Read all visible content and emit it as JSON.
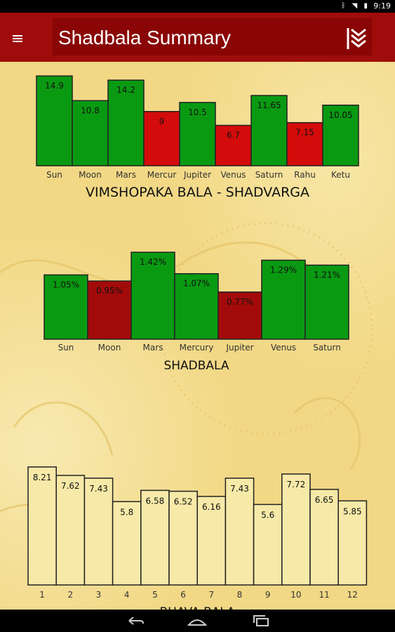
{
  "status": {
    "time": "9:19",
    "icons": [
      "bluetooth-icon",
      "wifi-icon",
      "battery-icon"
    ]
  },
  "app": {
    "title": "Shadbala Summary"
  },
  "colors": {
    "strong": "#0a9a12",
    "weak_red": "#d40b0b",
    "weak_dark": "#a30b0b",
    "bhava": "#f7e9a8",
    "appbar": "#9e0c0c"
  },
  "chart_data": [
    {
      "type": "bar",
      "title": "VIMSHOPAKA BALA - SHADVARGA",
      "categories": [
        "Sun",
        "Moon",
        "Mars",
        "Mercur",
        "Jupiter",
        "Venus",
        "Saturn",
        "Rahu",
        "Ketu"
      ],
      "values": [
        14.9,
        10.8,
        14.2,
        9,
        10.5,
        6.7,
        11.65,
        7.15,
        10.05
      ],
      "labels": [
        "14.9",
        "10.8",
        "14.2",
        "9",
        "10.5",
        "6.7",
        "11.65",
        "7.15",
        "10.05"
      ],
      "bar_colors": [
        "strong",
        "strong",
        "strong",
        "weak_red",
        "strong",
        "weak_red",
        "strong",
        "weak_red",
        "strong"
      ],
      "ylim": [
        0,
        15.5
      ],
      "grid": false
    },
    {
      "type": "bar",
      "title": "SHADBALA",
      "categories": [
        "Sun",
        "Moon",
        "Mars",
        "Mercury",
        "Jupiter",
        "Venus",
        "Saturn"
      ],
      "values": [
        1.05,
        0.95,
        1.42,
        1.07,
        0.77,
        1.29,
        1.21
      ],
      "labels": [
        "1.05%",
        "0.95%",
        "1.42%",
        "1.07%",
        "0.77%",
        "1.29%",
        "1.21%"
      ],
      "bar_colors": [
        "strong",
        "weak_dark",
        "strong",
        "strong",
        "weak_dark",
        "strong",
        "strong"
      ],
      "ylim": [
        0,
        1.48
      ],
      "grid": false
    },
    {
      "type": "bar",
      "title": "BHAVA BALA",
      "categories": [
        "1",
        "2",
        "3",
        "4",
        "5",
        "6",
        "7",
        "8",
        "9",
        "10",
        "11",
        "12"
      ],
      "values": [
        8.21,
        7.62,
        7.43,
        5.8,
        6.58,
        6.52,
        6.16,
        7.43,
        5.6,
        7.72,
        6.65,
        5.85
      ],
      "labels": [
        "8.21",
        "7.62",
        "7.43",
        "5.8",
        "6.58",
        "6.52",
        "6.16",
        "7.43",
        "5.6",
        "7.72",
        "6.65",
        "5.85"
      ],
      "bar_colors": [
        "bhava",
        "bhava",
        "bhava",
        "bhava",
        "bhava",
        "bhava",
        "bhava",
        "bhava",
        "bhava",
        "bhava",
        "bhava",
        "bhava"
      ],
      "ylim": [
        0,
        8.6
      ],
      "grid": false
    }
  ]
}
